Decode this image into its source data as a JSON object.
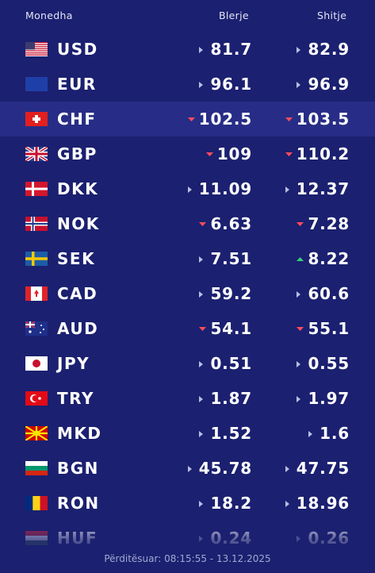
{
  "header": {
    "currency": "Monedha",
    "buy": "Blerje",
    "sell": "Shitje"
  },
  "rows": [
    {
      "code": "USD",
      "buy": "81.7",
      "buy_trend": "flat",
      "sell": "82.9",
      "sell_trend": "flat"
    },
    {
      "code": "EUR",
      "buy": "96.1",
      "buy_trend": "flat",
      "sell": "96.9",
      "sell_trend": "flat"
    },
    {
      "code": "CHF",
      "buy": "102.5",
      "buy_trend": "down",
      "sell": "103.5",
      "sell_trend": "down"
    },
    {
      "code": "GBP",
      "buy": "109",
      "buy_trend": "down",
      "sell": "110.2",
      "sell_trend": "down"
    },
    {
      "code": "DKK",
      "buy": "11.09",
      "buy_trend": "flat",
      "sell": "12.37",
      "sell_trend": "flat"
    },
    {
      "code": "NOK",
      "buy": "6.63",
      "buy_trend": "down",
      "sell": "7.28",
      "sell_trend": "down"
    },
    {
      "code": "SEK",
      "buy": "7.51",
      "buy_trend": "flat",
      "sell": "8.22",
      "sell_trend": "up"
    },
    {
      "code": "CAD",
      "buy": "59.2",
      "buy_trend": "flat",
      "sell": "60.6",
      "sell_trend": "flat"
    },
    {
      "code": "AUD",
      "buy": "54.1",
      "buy_trend": "down",
      "sell": "55.1",
      "sell_trend": "down"
    },
    {
      "code": "JPY",
      "buy": "0.51",
      "buy_trend": "flat",
      "sell": "0.55",
      "sell_trend": "flat"
    },
    {
      "code": "TRY",
      "buy": "1.87",
      "buy_trend": "flat",
      "sell": "1.97",
      "sell_trend": "flat"
    },
    {
      "code": "MKD",
      "buy": "1.52",
      "buy_trend": "flat",
      "sell": "1.6",
      "sell_trend": "flat"
    },
    {
      "code": "BGN",
      "buy": "45.78",
      "buy_trend": "flat",
      "sell": "47.75",
      "sell_trend": "flat"
    },
    {
      "code": "RON",
      "buy": "18.2",
      "buy_trend": "flat",
      "sell": "18.96",
      "sell_trend": "flat"
    },
    {
      "code": "HUF",
      "buy": "0.24",
      "buy_trend": "flat",
      "sell": "0.26",
      "sell_trend": "flat"
    }
  ],
  "highlighted_row": 2,
  "footer": "Përditësuar: 08:15:55 - 13.12.2025"
}
